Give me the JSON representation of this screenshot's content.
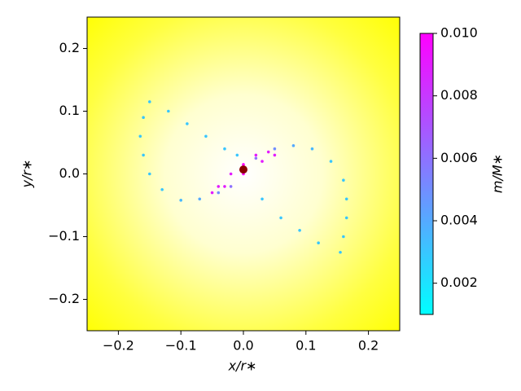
{
  "chart_data": {
    "type": "scatter",
    "xlabel": "x/r∗",
    "ylabel": "y/r∗",
    "colorbar_label": "m/M∗",
    "colormap": [
      "#00ffff",
      "#ff00ff"
    ],
    "clim": [
      0.001,
      0.01
    ],
    "cticks": [
      0.002,
      0.004,
      0.006,
      0.008,
      {
        "value": 0.01,
        "label": "0.010"
      }
    ],
    "xlim": [
      -0.25,
      0.25
    ],
    "ylim": [
      -0.25,
      0.25
    ],
    "xticks": [
      {
        "value": -0.2,
        "label": "−0.2"
      },
      {
        "value": -0.1,
        "label": "−0.1"
      },
      {
        "value": 0.0,
        "label": "0.0"
      },
      0.1,
      0.2
    ],
    "yticks": [
      {
        "value": -0.2,
        "label": "−0.2"
      },
      {
        "value": -0.1,
        "label": "−0.1"
      },
      {
        "value": 0.0,
        "label": "0.0"
      },
      0.1,
      0.2
    ],
    "x": [
      -0.15,
      -0.16,
      -0.165,
      -0.16,
      -0.15,
      -0.13,
      -0.1,
      -0.07,
      -0.04,
      -0.02,
      -0.12,
      -0.09,
      -0.06,
      -0.03,
      -0.01,
      0.02,
      0.05,
      0.08,
      0.11,
      0.14,
      0.16,
      0.165,
      0.165,
      0.16,
      0.155,
      0.12,
      0.09,
      0.06,
      0.03,
      -0.05,
      -0.03,
      0.0,
      0.03,
      0.05,
      0.04,
      0.02,
      0.0,
      -0.02,
      -0.04
    ],
    "values": [
      0.115,
      0.09,
      0.06,
      0.03,
      0.0,
      -0.025,
      -0.042,
      -0.04,
      -0.03,
      -0.02,
      0.1,
      0.08,
      0.06,
      0.04,
      0.03,
      0.025,
      0.04,
      0.045,
      0.04,
      0.02,
      -0.01,
      -0.04,
      -0.07,
      -0.1,
      -0.125,
      -0.11,
      -0.09,
      -0.07,
      -0.04,
      -0.03,
      -0.02,
      0.0,
      0.02,
      0.03,
      0.035,
      0.03,
      0.015,
      0.0,
      -0.02
    ],
    "mass": [
      0.003,
      0.003,
      0.003,
      0.003,
      0.003,
      0.003,
      0.0035,
      0.004,
      0.005,
      0.006,
      0.003,
      0.003,
      0.003,
      0.003,
      0.003,
      0.006,
      0.005,
      0.004,
      0.0035,
      0.003,
      0.003,
      0.003,
      0.003,
      0.003,
      0.003,
      0.003,
      0.003,
      0.003,
      0.003,
      0.009,
      0.009,
      0.01,
      0.009,
      0.009,
      0.009,
      0.009,
      0.01,
      0.009,
      0.009
    ],
    "center": {
      "x": 0.0,
      "y": 0.007,
      "color": "#8b0000"
    }
  }
}
